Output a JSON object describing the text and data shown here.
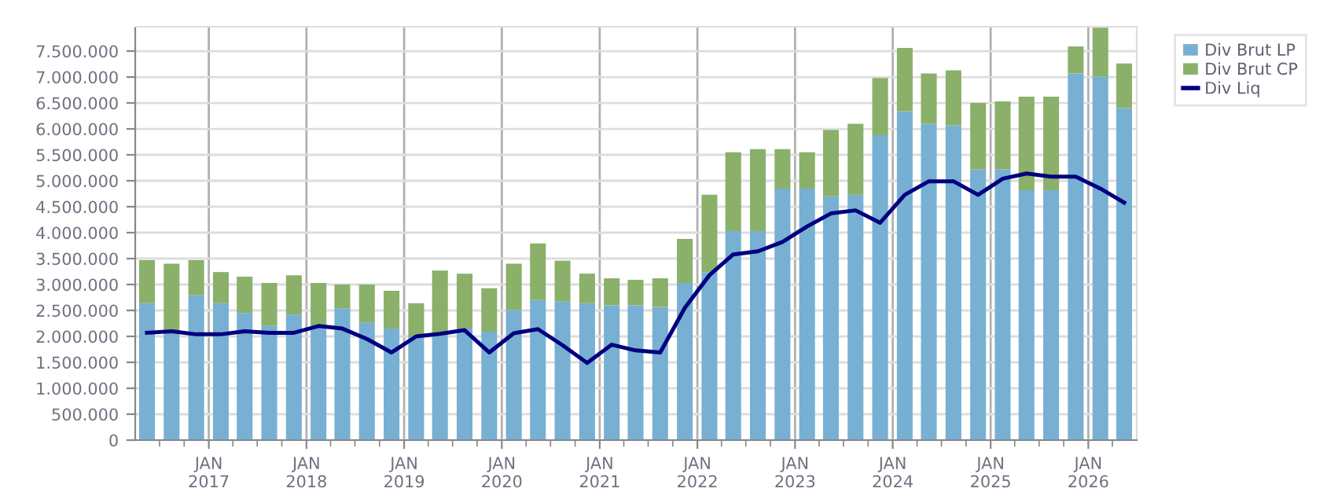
{
  "chart_data": {
    "type": "bar",
    "stacked": true,
    "grid": true,
    "legend": "top right",
    "marker": "none",
    "line_style": "solid",
    "x": [
      "2016-05-15",
      "2016-08-15",
      "2016-11-15",
      "2017-02-15",
      "2017-05-15",
      "2017-08-15",
      "2017-11-15",
      "2018-02-15",
      "2018-05-15",
      "2018-08-15",
      "2018-11-15",
      "2019-02-15",
      "2019-05-15",
      "2019-08-15",
      "2019-11-15",
      "2020-02-15",
      "2020-05-15",
      "2020-08-15",
      "2020-11-15",
      "2021-02-15",
      "2021-05-15",
      "2021-08-15",
      "2021-11-15",
      "2022-02-15",
      "2022-05-15",
      "2022-08-15",
      "2022-11-15",
      "2023-02-15",
      "2023-05-15",
      "2023-08-15",
      "2023-11-15",
      "2024-02-15",
      "2024-05-15",
      "2024-08-15",
      "2024-11-15",
      "2025-02-15",
      "2025-05-15",
      "2025-08-15",
      "2025-11-15",
      "2026-02-15",
      "2026-05-15"
    ],
    "series": [
      {
        "name": "Div Brut LP",
        "color": "#77b0d2",
        "values": [
          2640000,
          2100000,
          2800000,
          2640000,
          2450000,
          2210000,
          2420000,
          2200000,
          2540000,
          2270000,
          2150000,
          2000000,
          2050000,
          2150000,
          2090000,
          2510000,
          2700000,
          2670000,
          2640000,
          2600000,
          2600000,
          2570000,
          3030000,
          3240000,
          4030000,
          4030000,
          4850000,
          4850000,
          4700000,
          4730000,
          5880000,
          6340000,
          6100000,
          6070000,
          5220000,
          5220000,
          4820000,
          4820000,
          7070000,
          7010000,
          6400000
        ]
      },
      {
        "name": "Div Brut CP",
        "color": "#8ab06a",
        "values": [
          830000,
          1300000,
          670000,
          600000,
          700000,
          820000,
          760000,
          830000,
          460000,
          730000,
          730000,
          640000,
          1220000,
          1060000,
          840000,
          890000,
          1090000,
          790000,
          570000,
          520000,
          490000,
          550000,
          850000,
          1490000,
          1520000,
          1580000,
          760000,
          700000,
          1280000,
          1370000,
          1100000,
          1220000,
          970000,
          1060000,
          1280000,
          1310000,
          1800000,
          1800000,
          520000,
          940000,
          860000
        ]
      },
      {
        "name": "Div Liq",
        "type": "line",
        "color": "#000080",
        "values": [
          2070000,
          2100000,
          2040000,
          2040000,
          2100000,
          2070000,
          2070000,
          2200000,
          2150000,
          1950000,
          1690000,
          2000000,
          2050000,
          2120000,
          1690000,
          2060000,
          2140000,
          1830000,
          1490000,
          1840000,
          1730000,
          1690000,
          2550000,
          3180000,
          3580000,
          3640000,
          3820000,
          4120000,
          4370000,
          4430000,
          4190000,
          4730000,
          4990000,
          4990000,
          4730000,
          5040000,
          5140000,
          5080000,
          5080000,
          4850000,
          4580000
        ]
      }
    ],
    "xlim": [
      "2016-04-01",
      "2026-07-01"
    ],
    "xticks": [
      {
        "value": "2016-07-01",
        "label": null
      },
      {
        "value": "2016-10-01",
        "label": null
      },
      {
        "value": "2017-01-01",
        "label": "JAN\n2017"
      },
      {
        "value": "2017-04-01",
        "label": null
      },
      {
        "value": "2017-07-01",
        "label": null
      },
      {
        "value": "2017-10-01",
        "label": null
      },
      {
        "value": "2018-01-01",
        "label": "JAN\n2018"
      },
      {
        "value": "2018-04-01",
        "label": null
      },
      {
        "value": "2018-07-01",
        "label": null
      },
      {
        "value": "2018-10-01",
        "label": null
      },
      {
        "value": "2019-01-01",
        "label": "JAN\n2019"
      },
      {
        "value": "2019-04-01",
        "label": null
      },
      {
        "value": "2019-07-01",
        "label": null
      },
      {
        "value": "2019-10-01",
        "label": null
      },
      {
        "value": "2020-01-01",
        "label": "JAN\n2020"
      },
      {
        "value": "2020-04-01",
        "label": null
      },
      {
        "value": "2020-07-01",
        "label": null
      },
      {
        "value": "2020-10-01",
        "label": null
      },
      {
        "value": "2021-01-01",
        "label": "JAN\n2021"
      },
      {
        "value": "2021-04-01",
        "label": null
      },
      {
        "value": "2021-07-01",
        "label": null
      },
      {
        "value": "2021-10-01",
        "label": null
      },
      {
        "value": "2022-01-01",
        "label": "JAN\n2022"
      },
      {
        "value": "2022-04-01",
        "label": null
      },
      {
        "value": "2022-07-01",
        "label": null
      },
      {
        "value": "2022-10-01",
        "label": null
      },
      {
        "value": "2023-01-01",
        "label": "JAN\n2023"
      },
      {
        "value": "2023-04-01",
        "label": null
      },
      {
        "value": "2023-07-01",
        "label": null
      },
      {
        "value": "2023-10-01",
        "label": null
      },
      {
        "value": "2024-01-01",
        "label": "JAN\n2024"
      },
      {
        "value": "2024-04-01",
        "label": null
      },
      {
        "value": "2024-07-01",
        "label": null
      },
      {
        "value": "2024-10-01",
        "label": null
      },
      {
        "value": "2025-01-01",
        "label": "JAN\n2025"
      },
      {
        "value": "2025-04-01",
        "label": null
      },
      {
        "value": "2025-07-01",
        "label": null
      },
      {
        "value": "2025-10-01",
        "label": null
      },
      {
        "value": "2026-01-01",
        "label": "JAN\n2026"
      },
      {
        "value": "2026-04-01",
        "label": null
      }
    ],
    "ylim": [
      0,
      7970000
    ],
    "yticks": [
      0,
      {
        "value": 500000,
        "label": "500.000"
      },
      {
        "value": 1000000,
        "label": "1.000.000"
      },
      {
        "value": 1500000,
        "label": "1.500.000"
      },
      {
        "value": 2000000,
        "label": "2.000.000"
      },
      {
        "value": 2500000,
        "label": "2.500.000"
      },
      {
        "value": 3000000,
        "label": "3.000.000"
      },
      {
        "value": 3500000,
        "label": "3.500.000"
      },
      {
        "value": 4000000,
        "label": "4.000.000"
      },
      {
        "value": 4500000,
        "label": "4.500.000"
      },
      {
        "value": 5000000,
        "label": "5.000.000"
      },
      {
        "value": 5500000,
        "label": "5.500.000"
      },
      {
        "value": 6000000,
        "label": "6.000.000"
      },
      {
        "value": 6500000,
        "label": "6.500.000"
      },
      {
        "value": 7000000,
        "label": "7.000.000"
      },
      {
        "value": 7500000,
        "label": "7.500.000"
      }
    ]
  }
}
